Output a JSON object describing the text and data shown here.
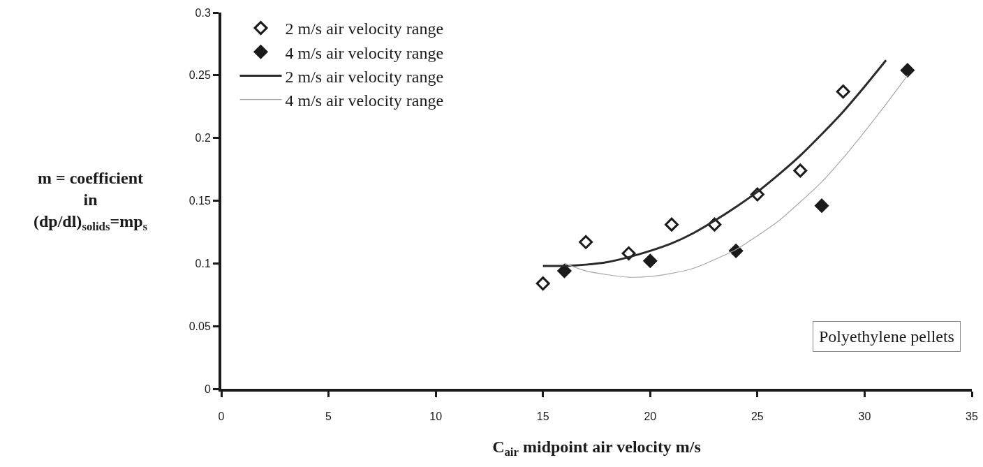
{
  "chart_data": {
    "type": "scatter",
    "xlabel": "C$_{air}$ midpoint air velocity m/s",
    "ylabel": "m = coefficient\nin\n(dp/dl)$_{solids}$=mp$_{s}$",
    "xlim": [
      0,
      35
    ],
    "xticks": [
      0,
      5,
      10,
      15,
      20,
      25,
      30,
      35
    ],
    "ylim": [
      0,
      0.3
    ],
    "yticks": [
      0,
      0.05,
      0.1,
      0.15,
      0.2,
      0.25,
      0.3
    ],
    "grid": false,
    "legend": "top left",
    "annotations": [
      "Polyethylene pellets"
    ],
    "series": [
      {
        "name": "2 m/s air velocity range",
        "marker": "diamond",
        "color": "#ffffff",
        "x": [
          15,
          17,
          19,
          21,
          23,
          25,
          27,
          29
        ],
        "values": [
          0.084,
          0.117,
          0.108,
          0.131,
          0.131,
          0.155,
          0.174,
          0.237
        ]
      },
      {
        "name": "4 m/s air velocity range",
        "marker": "diamond",
        "color": "#1a1a1a",
        "x": [
          16,
          20,
          24,
          28,
          32
        ],
        "values": [
          0.094,
          0.102,
          0.11,
          0.146,
          0.254
        ]
      },
      {
        "name": "2 m/s air velocity range",
        "type": "line",
        "marker": "none",
        "line_style": "solid",
        "color": "#2a2a2a",
        "x": [
          15,
          16,
          17,
          18,
          19,
          20,
          21,
          22,
          23,
          24,
          25,
          26,
          27,
          28,
          29,
          30,
          31
        ],
        "values": [
          0.098,
          0.098,
          0.099,
          0.101,
          0.105,
          0.11,
          0.116,
          0.124,
          0.134,
          0.145,
          0.157,
          0.171,
          0.186,
          0.203,
          0.221,
          0.241,
          0.262
        ]
      },
      {
        "name": "4 m/s air velocity range",
        "type": "line",
        "marker": "none",
        "line_style": "solid",
        "color": "#a8a8a8",
        "x": [
          16,
          17,
          18,
          19,
          20,
          21,
          22,
          23,
          24,
          25,
          26,
          27,
          28,
          29,
          30,
          31,
          32
        ],
        "values": [
          0.1,
          0.094,
          0.091,
          0.089,
          0.0895,
          0.092,
          0.096,
          0.103,
          0.111,
          0.122,
          0.134,
          0.149,
          0.165,
          0.184,
          0.205,
          0.227,
          0.25
        ]
      }
    ]
  }
}
